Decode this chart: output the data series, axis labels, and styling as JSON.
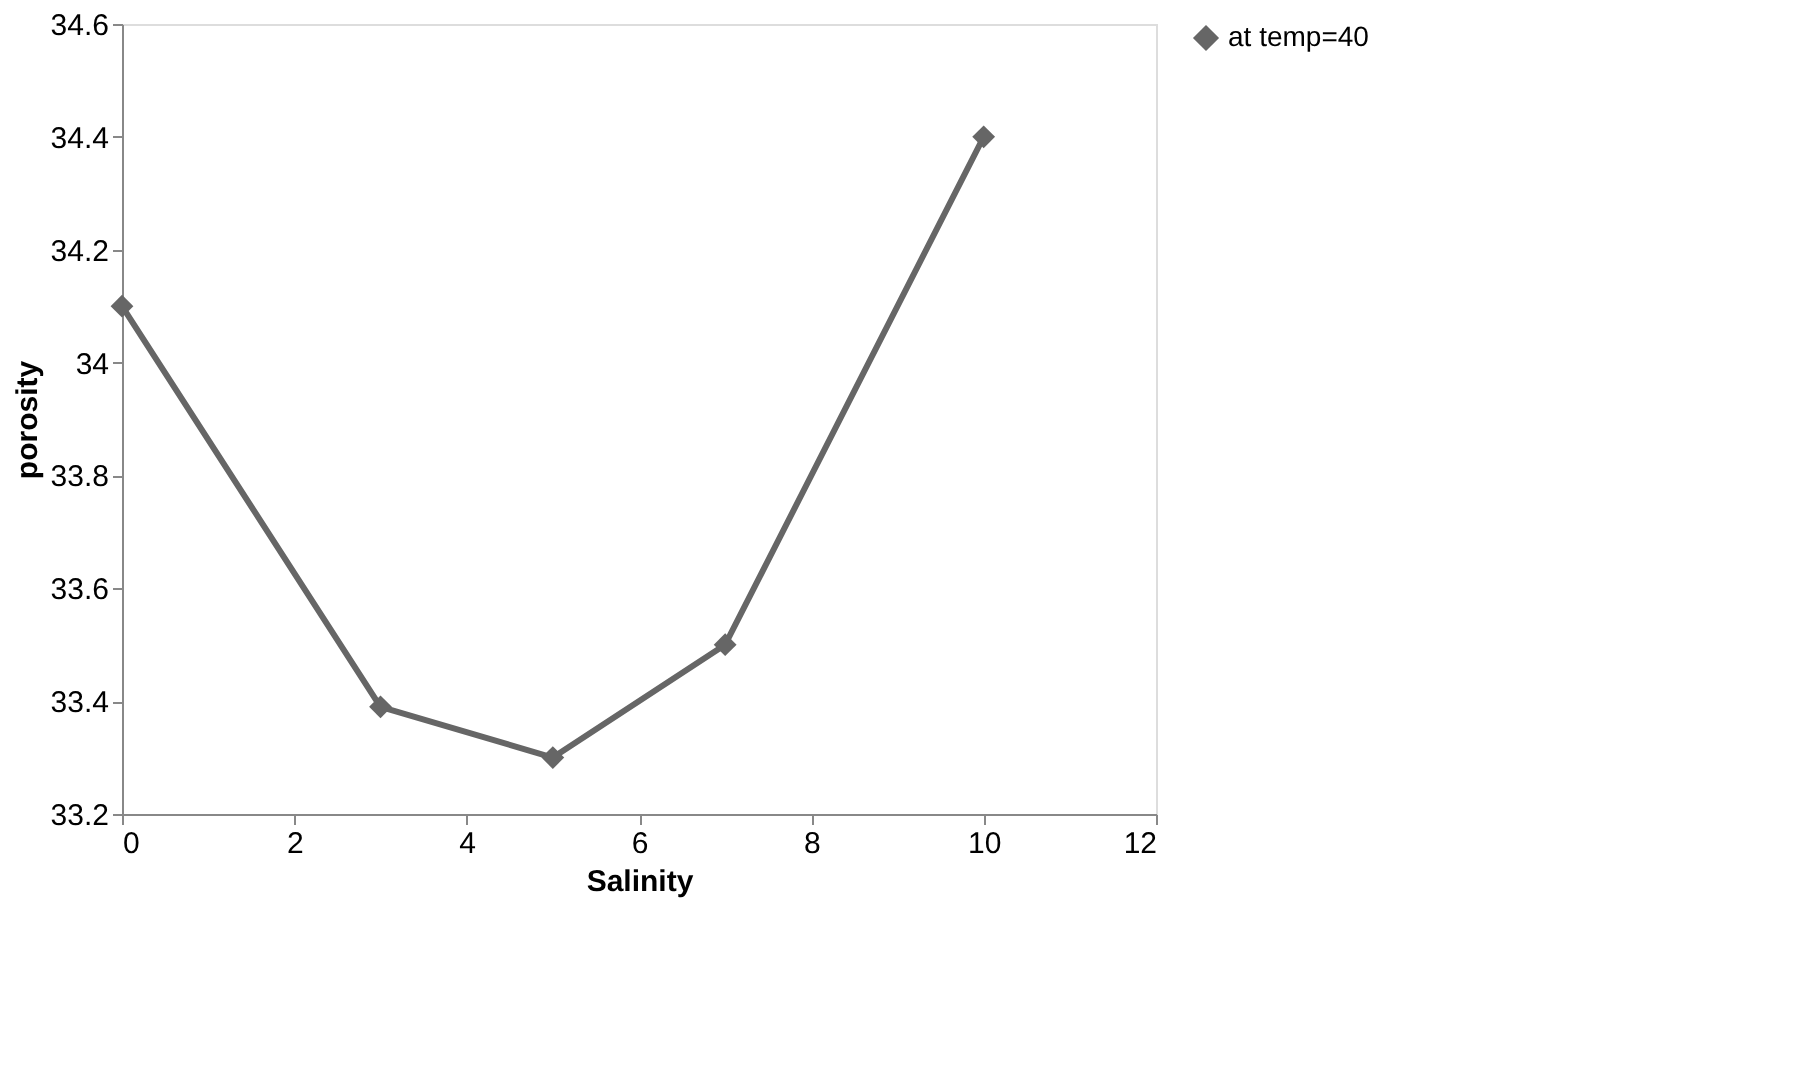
{
  "chart_data": {
    "type": "line",
    "xlabel": "Salinity",
    "ylabel": "porosity",
    "x": [
      0,
      3,
      5,
      7,
      10
    ],
    "series": [
      {
        "name": "at temp=40",
        "color": "#666666",
        "values": [
          34.1,
          33.39,
          33.3,
          33.5,
          34.4
        ]
      }
    ],
    "xlim": [
      0,
      12
    ],
    "xticks": [
      0,
      2,
      4,
      6,
      8,
      10,
      12
    ],
    "ylim": [
      33.2,
      34.6
    ],
    "yticks": [
      33.2,
      33.4,
      33.6,
      33.8,
      34,
      34.2,
      34.4,
      34.6
    ],
    "grid": false,
    "legend": "right",
    "marker": "diamond",
    "line_style": "solid"
  }
}
